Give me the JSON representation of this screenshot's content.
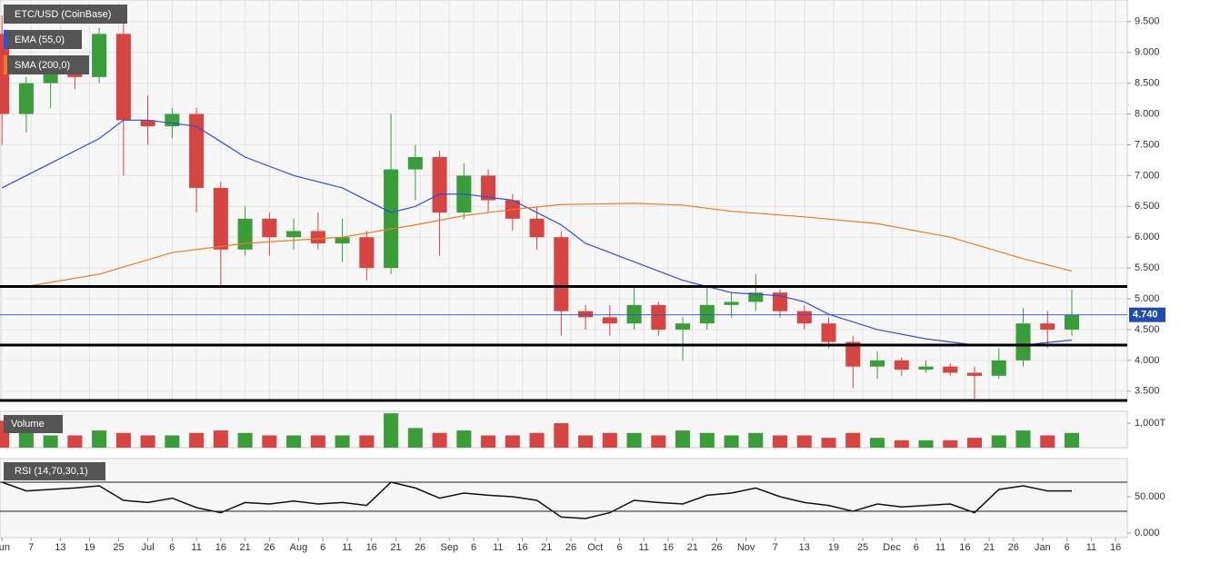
{
  "chart_data": {
    "type": "candlestick",
    "title": "ETC/USD (CoinBase)",
    "x": [
      0,
      5,
      10,
      15,
      20,
      25,
      30,
      35,
      40,
      45,
      50,
      55,
      60,
      65,
      70,
      75,
      80,
      85,
      90,
      95,
      100,
      105,
      110,
      115,
      120,
      125,
      130,
      135,
      140,
      145,
      150,
      155,
      160,
      165,
      170,
      175,
      180,
      185,
      190,
      195,
      200,
      205,
      210,
      215,
      220
    ],
    "open": [
      9.3,
      8.0,
      8.5,
      8.7,
      8.6,
      9.3,
      7.9,
      7.8,
      8.0,
      6.8,
      5.8,
      6.3,
      6.0,
      6.1,
      5.9,
      6.0,
      5.5,
      7.1,
      7.3,
      6.4,
      7.0,
      6.6,
      6.3,
      6.0,
      4.8,
      4.7,
      4.6,
      4.9,
      4.5,
      4.6,
      4.9,
      4.95,
      5.1,
      4.8,
      4.6,
      4.3,
      3.9,
      4.0,
      3.85,
      3.9,
      3.8,
      3.75,
      4.0,
      4.6,
      4.5
    ],
    "high": [
      9.6,
      8.6,
      8.9,
      8.9,
      9.4,
      9.6,
      8.3,
      8.1,
      8.1,
      6.9,
      6.5,
      6.4,
      6.3,
      6.4,
      6.3,
      6.1,
      8.0,
      7.5,
      7.4,
      7.2,
      7.1,
      6.7,
      6.5,
      6.1,
      4.9,
      4.9,
      5.2,
      4.95,
      4.7,
      5.2,
      5.1,
      5.4,
      5.15,
      4.9,
      4.7,
      4.4,
      4.15,
      4.05,
      4.0,
      3.95,
      3.9,
      4.2,
      4.85,
      4.8,
      5.15
    ],
    "low": [
      7.5,
      7.7,
      8.1,
      8.4,
      8.5,
      7.0,
      7.5,
      7.6,
      6.4,
      5.2,
      5.7,
      5.7,
      5.8,
      5.8,
      5.6,
      5.3,
      5.4,
      6.6,
      5.7,
      6.3,
      6.4,
      6.1,
      5.8,
      4.4,
      4.5,
      4.4,
      4.5,
      4.4,
      4.0,
      4.5,
      4.7,
      4.8,
      4.7,
      4.5,
      4.2,
      3.55,
      3.7,
      3.75,
      3.8,
      3.75,
      3.38,
      3.7,
      3.9,
      4.2,
      4.4
    ],
    "close": [
      8.0,
      8.5,
      8.7,
      8.6,
      9.3,
      7.9,
      7.8,
      8.0,
      6.8,
      5.8,
      6.3,
      6.0,
      6.1,
      5.9,
      6.0,
      5.5,
      7.1,
      7.3,
      6.4,
      7.0,
      6.6,
      6.3,
      6.0,
      4.8,
      4.7,
      4.6,
      4.9,
      4.5,
      4.6,
      4.9,
      4.95,
      5.1,
      4.8,
      4.6,
      4.3,
      3.9,
      4.0,
      3.85,
      3.9,
      3.8,
      3.75,
      4.0,
      4.6,
      4.5,
      4.74
    ],
    "up_color": "#3a9d3a",
    "down_color": "#d64541",
    "xlim": [
      -0.4,
      231.4
    ],
    "ylim": [
      3.35,
      9.85
    ],
    "xticks": [
      {
        "value": 0,
        "label": "Jun"
      },
      {
        "value": 6,
        "label": "7"
      },
      {
        "value": 12,
        "label": "13"
      },
      {
        "value": 18,
        "label": "19"
      },
      {
        "value": 24,
        "label": "25"
      },
      {
        "value": 30,
        "label": "Jul"
      },
      {
        "value": 35,
        "label": "6"
      },
      {
        "value": 40,
        "label": "11"
      },
      {
        "value": 45,
        "label": "16"
      },
      {
        "value": 50,
        "label": "21"
      },
      {
        "value": 55,
        "label": "26"
      },
      {
        "value": 61,
        "label": "Aug"
      },
      {
        "value": 66,
        "label": "6"
      },
      {
        "value": 71,
        "label": "11"
      },
      {
        "value": 76,
        "label": "16"
      },
      {
        "value": 81,
        "label": "21"
      },
      {
        "value": 86,
        "label": "26"
      },
      {
        "value": 92,
        "label": "Sep"
      },
      {
        "value": 97,
        "label": "6"
      },
      {
        "value": 102,
        "label": "11"
      },
      {
        "value": 107,
        "label": "16"
      },
      {
        "value": 112,
        "label": "21"
      },
      {
        "value": 117,
        "label": "26"
      },
      {
        "value": 122,
        "label": "Oct"
      },
      {
        "value": 127,
        "label": "6"
      },
      {
        "value": 132,
        "label": "11"
      },
      {
        "value": 137,
        "label": "16"
      },
      {
        "value": 142,
        "label": "21"
      },
      {
        "value": 147,
        "label": "26"
      },
      {
        "value": 153,
        "label": "Nov"
      },
      {
        "value": 159,
        "label": "7"
      },
      {
        "value": 165,
        "label": "13"
      },
      {
        "value": 171,
        "label": "19"
      },
      {
        "value": 177,
        "label": "25"
      },
      {
        "value": 183,
        "label": "Dec"
      },
      {
        "value": 188,
        "label": "6"
      },
      {
        "value": 193,
        "label": "11"
      },
      {
        "value": 198,
        "label": "16"
      },
      {
        "value": 203,
        "label": "21"
      },
      {
        "value": 208,
        "label": "26"
      },
      {
        "value": 214,
        "label": "Jan"
      },
      {
        "value": 219,
        "label": "6"
      },
      {
        "value": 224,
        "label": "11"
      },
      {
        "value": 229,
        "label": "16"
      }
    ],
    "yticks": [
      {
        "value": 3.5,
        "label": "3.500"
      },
      {
        "value": 4,
        "label": "4.000"
      },
      {
        "value": 4.5,
        "label": "4.500"
      },
      {
        "value": 5,
        "label": "5.000"
      },
      {
        "value": 5.5,
        "label": "5.500"
      },
      {
        "value": 6,
        "label": "6.000"
      },
      {
        "value": 6.5,
        "label": "6.500"
      },
      {
        "value": 7,
        "label": "7.000"
      },
      {
        "value": 7.5,
        "label": "7.500"
      },
      {
        "value": 8,
        "label": "8.000"
      },
      {
        "value": 8.5,
        "label": "8.500"
      },
      {
        "value": 9,
        "label": "9.000"
      },
      {
        "value": 9.5,
        "label": "9.500"
      }
    ],
    "grid": true,
    "indicators": [
      {
        "name": "EMA (55,0)",
        "color": "#2f4fd8",
        "x": [
          0,
          10,
          20,
          25,
          30,
          40,
          50,
          60,
          70,
          80,
          85,
          90,
          95,
          105,
          110,
          115,
          120,
          130,
          140,
          150,
          160,
          165,
          170,
          180,
          190,
          200,
          210,
          220
        ],
        "values": [
          6.8,
          7.2,
          7.6,
          7.9,
          7.9,
          7.8,
          7.3,
          7.0,
          6.8,
          6.4,
          6.5,
          6.7,
          6.7,
          6.6,
          6.4,
          6.2,
          5.9,
          5.6,
          5.3,
          5.1,
          5.05,
          4.95,
          4.75,
          4.5,
          4.35,
          4.25,
          4.25,
          4.33
        ]
      },
      {
        "name": "SMA (200,0)",
        "color": "#f07c1e",
        "x": [
          5,
          20,
          35,
          50,
          70,
          85,
          95,
          105,
          115,
          130,
          140,
          150,
          165,
          180,
          195,
          210,
          220
        ],
        "values": [
          5.2,
          5.4,
          5.75,
          5.9,
          6.0,
          6.2,
          6.35,
          6.45,
          6.53,
          6.55,
          6.52,
          6.42,
          6.33,
          6.22,
          6.0,
          5.65,
          5.45
        ]
      }
    ],
    "levels": [
      5.2,
      4.25,
      3.35
    ],
    "last_price": {
      "value": 4.74,
      "label": "4.740"
    },
    "volume": {
      "title": "Volume",
      "values": [
        1100,
        700,
        500,
        500,
        700,
        600,
        500,
        500,
        600,
        700,
        600,
        500,
        500,
        500,
        500,
        500,
        1400,
        800,
        600,
        700,
        500,
        500,
        600,
        1000,
        500,
        600,
        600,
        500,
        700,
        600,
        500,
        600,
        500,
        500,
        400,
        600,
        400,
        300,
        300,
        300,
        400,
        500,
        700,
        500,
        600
      ],
      "ylim": [
        0,
        1480
      ],
      "yticks": [
        {
          "value": 1000,
          "label": "1,000T"
        }
      ]
    },
    "rsi": {
      "title": "RSI (14,70,30,1)",
      "values": [
        70,
        58,
        60,
        62,
        65,
        45,
        42,
        48,
        35,
        28,
        42,
        40,
        44,
        40,
        42,
        38,
        70,
        62,
        48,
        55,
        52,
        50,
        45,
        22,
        20,
        28,
        45,
        42,
        40,
        52,
        55,
        62,
        50,
        42,
        38,
        30,
        40,
        36,
        38,
        40,
        28,
        60,
        65,
        58,
        58
      ],
      "ylim": [
        -6.25,
        102.5
      ],
      "yticks": [
        {
          "value": 0,
          "label": "0.000"
        },
        {
          "value": 50,
          "label": "50.000"
        }
      ],
      "bands": [
        30,
        70
      ]
    }
  }
}
